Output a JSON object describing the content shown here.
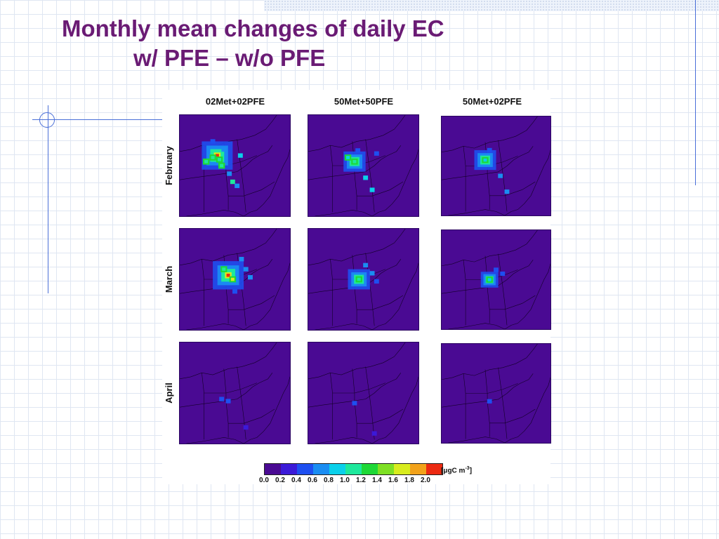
{
  "slide": {
    "title_line1": "Monthly mean changes of daily EC",
    "title_line2": "w/ PFE – w/o PFE"
  },
  "figure": {
    "columns": [
      "02Met+02PFE",
      "50Met+50PFE",
      "50Met+02PFE"
    ],
    "rows": [
      "February",
      "March",
      "April"
    ],
    "panels": [
      [
        {
          "level": "high",
          "hot": [
            [
              34,
              40,
              2
            ],
            [
              30,
              42,
              1
            ],
            [
              36,
              44,
              1
            ],
            [
              24,
              46,
              1
            ],
            [
              38,
              50,
              1
            ]
          ],
          "spots": [
            [
              48,
              66,
              0.9
            ],
            [
              52,
              70,
              0.6
            ],
            [
              30,
              26,
              0.4
            ],
            [
              40,
              34,
              0.5
            ],
            [
              55,
              40,
              0.7
            ],
            [
              45,
              58,
              0.5
            ]
          ]
        },
        {
          "level": "med",
          "hot": [
            [
              42,
              46,
              1
            ],
            [
              36,
              42,
              0.5
            ]
          ],
          "spots": [
            [
              52,
              62,
              0.7
            ],
            [
              58,
              74,
              0.7
            ],
            [
              45,
              35,
              0.3
            ],
            [
              62,
              38,
              0.4
            ]
          ]
        },
        {
          "level": "med",
          "hot": [
            [
              40,
              44,
              0.8
            ]
          ],
          "spots": [
            [
              54,
              60,
              0.6
            ],
            [
              60,
              76,
              0.5
            ],
            [
              44,
              34,
              0.3
            ]
          ]
        }
      ],
      [
        {
          "level": "high",
          "hot": [
            [
              44,
              46,
              2
            ],
            [
              48,
              50,
              1.5
            ],
            [
              40,
              40,
              1
            ]
          ],
          "spots": [
            [
              60,
              40,
              0.6
            ],
            [
              56,
              30,
              0.6
            ],
            [
              50,
              62,
              0.4
            ],
            [
              64,
              48,
              0.5
            ]
          ]
        },
        {
          "level": "med",
          "hot": [
            [
              46,
              50,
              1
            ]
          ],
          "spots": [
            [
              58,
              44,
              0.6
            ],
            [
              52,
              36,
              0.5
            ],
            [
              62,
              52,
              0.4
            ]
          ]
        },
        {
          "level": "low",
          "hot": [
            [
              44,
              50,
              0.6
            ]
          ],
          "spots": [
            [
              56,
              44,
              0.4
            ],
            [
              50,
              40,
              0.3
            ]
          ]
        }
      ],
      [
        {
          "level": "vlow",
          "hot": [],
          "spots": [
            [
              44,
              58,
              0.4
            ],
            [
              38,
              56,
              0.3
            ],
            [
              60,
              84,
              0.2
            ]
          ]
        },
        {
          "level": "vlow",
          "hot": [],
          "spots": [
            [
              42,
              60,
              0.3
            ],
            [
              60,
              90,
              0.1
            ]
          ]
        },
        {
          "level": "vlow",
          "hot": [],
          "spots": [
            [
              44,
              58,
              0.3
            ]
          ]
        }
      ]
    ]
  },
  "legend": {
    "colors": [
      "#4a0a93",
      "#3b1ad8",
      "#1e4ff0",
      "#1a8df2",
      "#0ad0ea",
      "#1ee89c",
      "#1ed836",
      "#7ee024",
      "#d8ec1e",
      "#f2a21a",
      "#ec2a12"
    ],
    "ticks": [
      "0.0",
      "0.2",
      "0.4",
      "0.6",
      "0.8",
      "1.0",
      "1.2",
      "1.4",
      "1.6",
      "1.8",
      "2.0"
    ],
    "units": "[μgC m",
    "units_exp": "-3",
    "units_close": "]"
  }
}
